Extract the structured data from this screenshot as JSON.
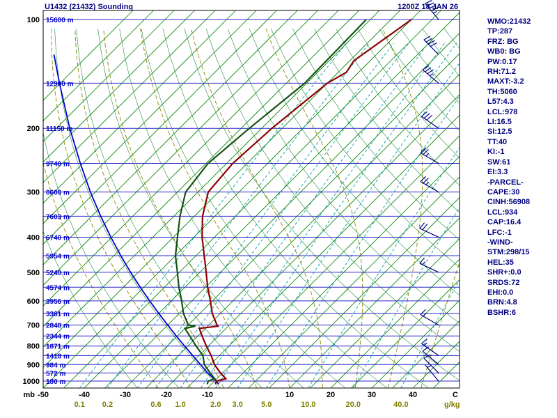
{
  "header": {
    "title": "U1432 (21432) Sounding",
    "datetime": "1200Z 18 JAN 26"
  },
  "colors": {
    "background": "#ffffff",
    "frame": "#000000",
    "pressure_line": "#2929c8",
    "isotherm": "#008000",
    "dry_adiabat": "#1e8c3c",
    "mixing_ratio": "#00a0a0",
    "moist_adiabat": "#8a8a00",
    "temp_trace": "#8b0000",
    "dew_trace": "#145214",
    "parcel_trace": "#0000cd",
    "wind_barb": "#000080",
    "height_label": "#0000c8",
    "pressure_label": "#000000",
    "temp_label": "#000000",
    "mixing_label": "#808000"
  },
  "chart_data": {
    "type": "skewt-log-p-sounding",
    "title": "U1432 (21432) Sounding",
    "valid": "1200Z 18 JAN 26",
    "pressure_axis": {
      "unit": "mb",
      "range_mb": [
        100,
        1046
      ],
      "gridline_step_mb": 50,
      "ticks": [
        100,
        200,
        300,
        400,
        500,
        600,
        700,
        800,
        900,
        1000
      ]
    },
    "temp_axis": {
      "unit": "C",
      "skew_deg": 45,
      "isotherm_step_c": 5,
      "ticks": [
        -50,
        -40,
        -30,
        -20,
        -10,
        10,
        20,
        30,
        40
      ]
    },
    "mixing_ratio_axis": {
      "unit": "g/kg",
      "labeled_lines": [
        "0.1",
        "0.2",
        "0.6",
        "1.0",
        "2.0",
        "3.0",
        "5.0",
        "10.0",
        "20.0",
        "40.0"
      ],
      "labeled_values": [
        0.1,
        0.2,
        0.6,
        1.0,
        2.0,
        3.0,
        5.0,
        10.0,
        20.0,
        40.0
      ],
      "line_values": [
        0.1,
        0.2,
        0.4,
        0.6,
        1.0,
        1.5,
        2.0,
        3.0,
        5.0,
        10.0,
        20.0,
        40.0
      ]
    },
    "dry_adiabat_theta_k": {
      "min": 243,
      "max": 453,
      "step": 10
    },
    "moist_adiabat_start_temps_c": [
      -22,
      -14,
      -6,
      2,
      10,
      18,
      26,
      34,
      42
    ],
    "height_labels": [
      {
        "p": 100,
        "label": "15600 m"
      },
      {
        "p": 150,
        "label": "12900 m"
      },
      {
        "p": 200,
        "label": "11150 m"
      },
      {
        "p": 250,
        "label": "9740 m"
      },
      {
        "p": 300,
        "label": "8600 m"
      },
      {
        "p": 350,
        "label": "7603 m"
      },
      {
        "p": 400,
        "label": "6740 m"
      },
      {
        "p": 450,
        "label": "5954 m"
      },
      {
        "p": 500,
        "label": "5240 m"
      },
      {
        "p": 550,
        "label": "4574 m"
      },
      {
        "p": 600,
        "label": "3956 m"
      },
      {
        "p": 650,
        "label": "3381 m"
      },
      {
        "p": 700,
        "label": "2848 m"
      },
      {
        "p": 750,
        "label": "2344 m"
      },
      {
        "p": 800,
        "label": "1871 m"
      },
      {
        "p": 850,
        "label": "1418 m"
      },
      {
        "p": 900,
        "label": "984 m"
      },
      {
        "p": 950,
        "label": "572 m"
      },
      {
        "p": 1000,
        "label": "180 m"
      }
    ],
    "temperature_profile": [
      [
        1020,
        -9.0
      ],
      [
        1000,
        -9.5
      ],
      [
        985,
        -7.8
      ],
      [
        950,
        -10.5
      ],
      [
        900,
        -14.0
      ],
      [
        850,
        -17.0
      ],
      [
        800,
        -20.5
      ],
      [
        750,
        -24.0
      ],
      [
        715,
        -26.5
      ],
      [
        705,
        -22.5
      ],
      [
        700,
        -23.0
      ],
      [
        650,
        -27.0
      ],
      [
        600,
        -30.5
      ],
      [
        550,
        -34.5
      ],
      [
        500,
        -38.5
      ],
      [
        450,
        -43.0
      ],
      [
        400,
        -48.0
      ],
      [
        350,
        -53.0
      ],
      [
        300,
        -57.5
      ],
      [
        250,
        -58.5
      ],
      [
        200,
        -57.5
      ],
      [
        150,
        -55.0
      ],
      [
        140,
        -53.0
      ],
      [
        130,
        -54.0
      ],
      [
        100,
        -50.0
      ]
    ],
    "dewpoint_profile": [
      [
        1020,
        -11.0
      ],
      [
        1000,
        -11.5
      ],
      [
        985,
        -10.5
      ],
      [
        950,
        -13.0
      ],
      [
        900,
        -16.5
      ],
      [
        850,
        -19.0
      ],
      [
        800,
        -23.0
      ],
      [
        750,
        -27.0
      ],
      [
        715,
        -30.0
      ],
      [
        705,
        -28.0
      ],
      [
        700,
        -30.0
      ],
      [
        650,
        -34.0
      ],
      [
        600,
        -37.5
      ],
      [
        550,
        -41.5
      ],
      [
        500,
        -45.5
      ],
      [
        450,
        -50.0
      ],
      [
        400,
        -54.0
      ],
      [
        350,
        -58.5
      ],
      [
        300,
        -63.0
      ],
      [
        250,
        -64.5
      ],
      [
        200,
        -63.0
      ],
      [
        150,
        -60.5
      ],
      [
        100,
        -61.0
      ]
    ],
    "parcel_profile": [
      [
        1020,
        -8.2
      ],
      [
        1000,
        -9.5
      ],
      [
        950,
        -13.6
      ],
      [
        900,
        -17.4
      ],
      [
        850,
        -21.5
      ],
      [
        800,
        -25.8
      ],
      [
        750,
        -30.3
      ],
      [
        700,
        -35.0
      ],
      [
        650,
        -40.0
      ],
      [
        600,
        -45.3
      ],
      [
        550,
        -50.9
      ],
      [
        500,
        -56.9
      ],
      [
        450,
        -63.3
      ],
      [
        400,
        -70.2
      ],
      [
        350,
        -77.8
      ],
      [
        300,
        -86.2
      ],
      [
        250,
        -95.6
      ],
      [
        200,
        -106.7
      ],
      [
        150,
        -120.2
      ],
      [
        125,
        -128.5
      ]
    ],
    "wind_barbs": [
      {
        "p": 1000,
        "dir": 320,
        "spd": 5
      },
      {
        "p": 950,
        "dir": 315,
        "spd": 10
      },
      {
        "p": 900,
        "dir": 310,
        "spd": 10
      },
      {
        "p": 850,
        "dir": 305,
        "spd": 15
      },
      {
        "p": 700,
        "dir": 300,
        "spd": 15
      },
      {
        "p": 500,
        "dir": 295,
        "spd": 15
      },
      {
        "p": 400,
        "dir": 295,
        "spd": 20
      },
      {
        "p": 300,
        "dir": 300,
        "spd": 25
      },
      {
        "p": 250,
        "dir": 300,
        "spd": 25
      },
      {
        "p": 200,
        "dir": 305,
        "spd": 30
      },
      {
        "p": 150,
        "dir": 310,
        "spd": 35
      },
      {
        "p": 125,
        "dir": 315,
        "spd": 40
      },
      {
        "p": 100,
        "dir": 320,
        "spd": 45
      }
    ],
    "axis_corner_labels": {
      "pressure": "mb",
      "temperature": "C",
      "mixing_ratio": "g/kg"
    }
  },
  "indices_panel": {
    "lines": [
      "WMO:21432",
      "TP:287",
      "FRZ: BG",
      "WB0: BG",
      "PW:0.17",
      "RH:71.2",
      "MAXT:-3.2",
      "TH:5060",
      "L57:4.3",
      "LCL:978",
      "LI:16.5",
      "SI:12.5",
      "TT:40",
      "KI:-1",
      "SW:61",
      "EI:3.3",
      "-PARCEL-",
      "CAPE:30",
      "CINH:56908",
      "LCL:934",
      "CAP:16.4",
      "LFC:-1",
      "-WIND-",
      "STM:298/15",
      "HEL:35",
      "SHR+:0.0",
      "SRDS:72",
      "EHI:0.0",
      "BRN:4.8",
      "BSHR:6"
    ]
  }
}
